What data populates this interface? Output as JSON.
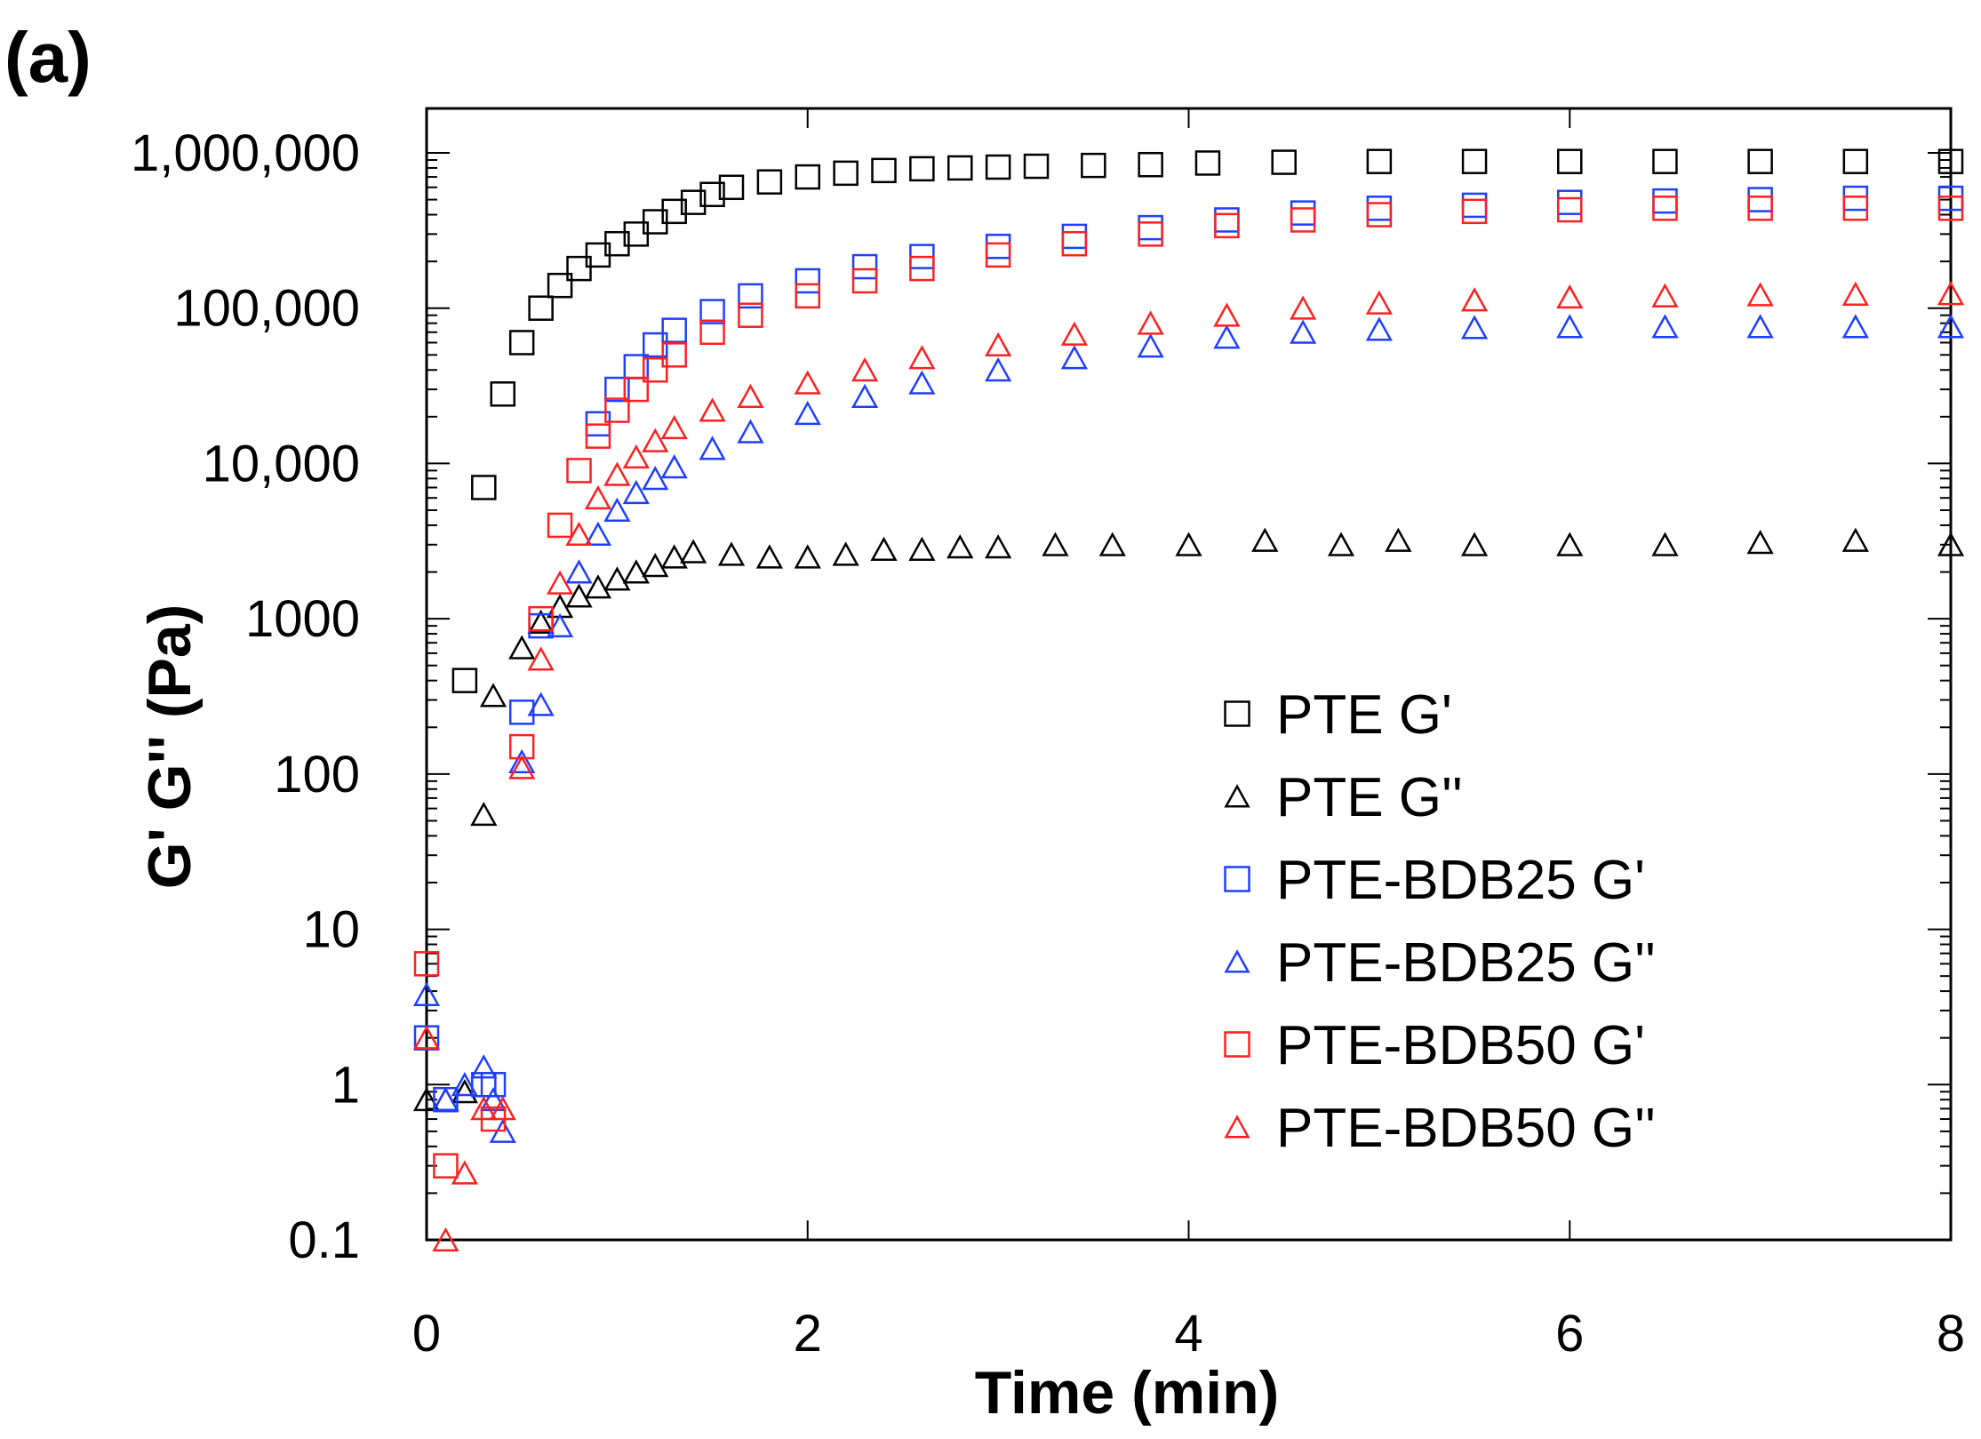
{
  "panel_label": "(a)",
  "chart_data": {
    "type": "scatter",
    "title": "",
    "xlabel": "Time (min)",
    "ylabel": "G' G'' (Pa)",
    "xlim": [
      0,
      8
    ],
    "ylim": [
      0.1,
      1000000
    ],
    "yscale": "log",
    "grid": false,
    "legend_position": "center-right",
    "x_ticks": [
      0,
      2,
      4,
      6,
      8
    ],
    "x_tick_labels": [
      "0",
      "2",
      "4",
      "6",
      "8"
    ],
    "y_ticks": [
      0.1,
      1,
      10,
      100,
      1000,
      10000,
      100000,
      1000000
    ],
    "y_tick_labels": [
      "0.1",
      "1",
      "10",
      "100",
      "1000",
      "10,000",
      "100,000",
      "1,000,000"
    ],
    "series": [
      {
        "name": "PTE G'",
        "marker": "square",
        "color": "#000000",
        "x": [
          0.2,
          0.3,
          0.4,
          0.5,
          0.6,
          0.7,
          0.8,
          0.9,
          1.0,
          1.1,
          1.2,
          1.3,
          1.4,
          1.5,
          1.6,
          1.8,
          2.0,
          2.2,
          2.4,
          2.6,
          2.8,
          3.0,
          3.2,
          3.5,
          3.8,
          4.1,
          4.5,
          5.0,
          5.5,
          6.0,
          6.5,
          7.0,
          7.5,
          8.0
        ],
        "y": [
          400,
          7000,
          28000,
          60000,
          100000,
          140000,
          180000,
          220000,
          260000,
          300000,
          360000,
          420000,
          480000,
          540000,
          600000,
          650000,
          700000,
          740000,
          770000,
          790000,
          800000,
          810000,
          820000,
          830000,
          840000,
          860000,
          870000,
          880000,
          880000,
          880000,
          880000,
          880000,
          880000,
          880000
        ]
      },
      {
        "name": "PTE G''",
        "marker": "triangle",
        "color": "#000000",
        "x": [
          0,
          0.1,
          0.2,
          0.3,
          0.35,
          0.5,
          0.6,
          0.7,
          0.8,
          0.9,
          1.0,
          1.1,
          1.2,
          1.3,
          1.4,
          1.6,
          1.8,
          2.0,
          2.2,
          2.4,
          2.6,
          2.8,
          3.0,
          3.3,
          3.6,
          4.0,
          4.4,
          4.8,
          5.1,
          5.5,
          6.0,
          6.5,
          7.0,
          7.5,
          8.0
        ],
        "y": [
          0.8,
          0.8,
          0.9,
          55,
          320,
          650,
          950,
          1200,
          1400,
          1600,
          1800,
          2000,
          2200,
          2500,
          2700,
          2600,
          2500,
          2500,
          2600,
          2800,
          2800,
          2900,
          2900,
          3000,
          3000,
          3000,
          3200,
          3000,
          3200,
          3000,
          3000,
          3000,
          3100,
          3200,
          3000
        ]
      },
      {
        "name": "PTE-BDB25 G'",
        "marker": "square",
        "color": "#1f3fff",
        "x": [
          0,
          0.1,
          0.3,
          0.35,
          0.5,
          0.6,
          0.9,
          1.0,
          1.1,
          1.2,
          1.3,
          1.5,
          1.7,
          2.0,
          2.3,
          2.6,
          3.0,
          3.4,
          3.8,
          4.2,
          4.6,
          5.0,
          5.5,
          6.0,
          6.5,
          7.0,
          7.5,
          8.0
        ],
        "y": [
          2,
          0.8,
          1.0,
          1.0,
          250,
          900,
          18000,
          30000,
          42000,
          58000,
          72000,
          95000,
          120000,
          150000,
          185000,
          215000,
          250000,
          290000,
          330000,
          370000,
          410000,
          440000,
          460000,
          480000,
          490000,
          500000,
          510000,
          510000
        ]
      },
      {
        "name": "PTE-BDB25 G''",
        "marker": "triangle",
        "color": "#1f3fff",
        "x": [
          0,
          0.1,
          0.2,
          0.3,
          0.35,
          0.4,
          0.5,
          0.6,
          0.7,
          0.8,
          0.9,
          1.0,
          1.1,
          1.2,
          1.3,
          1.5,
          1.7,
          2.0,
          2.3,
          2.6,
          3.0,
          3.4,
          3.8,
          4.2,
          4.6,
          5.0,
          5.5,
          6.0,
          6.5,
          7.0,
          7.5,
          8.0
        ],
        "y": [
          3.8,
          0.8,
          1.0,
          1.3,
          0.8,
          0.5,
          120,
          280,
          900,
          2000,
          3500,
          5000,
          6500,
          8000,
          9500,
          12500,
          16000,
          21000,
          27000,
          33000,
          40000,
          48000,
          57000,
          65000,
          70000,
          73000,
          75000,
          76000,
          76000,
          76000,
          76000,
          76000
        ]
      },
      {
        "name": "PTE-BDB50 G'",
        "marker": "square",
        "color": "#ff2020",
        "x": [
          0,
          0.1,
          0.35,
          0.5,
          0.6,
          0.7,
          0.8,
          0.9,
          1.0,
          1.1,
          1.2,
          1.3,
          1.5,
          1.7,
          2.0,
          2.3,
          2.6,
          3.0,
          3.4,
          3.8,
          4.2,
          4.6,
          5.0,
          5.5,
          6.0,
          6.5,
          7.0,
          7.5,
          8.0
        ],
        "y": [
          6,
          0.3,
          0.6,
          150,
          1000,
          4000,
          9000,
          15000,
          22000,
          30000,
          40000,
          50000,
          70000,
          90000,
          120000,
          150000,
          180000,
          220000,
          260000,
          300000,
          340000,
          370000,
          400000,
          420000,
          430000,
          440000,
          440000,
          440000,
          440000
        ]
      },
      {
        "name": "PTE-BDB50 G''",
        "marker": "triangle",
        "color": "#ff2020",
        "x": [
          0,
          0.1,
          0.2,
          0.3,
          0.4,
          0.5,
          0.6,
          0.7,
          0.8,
          0.9,
          1.0,
          1.1,
          1.2,
          1.3,
          1.5,
          1.7,
          2.0,
          2.3,
          2.6,
          3.0,
          3.4,
          3.8,
          4.2,
          4.6,
          5.0,
          5.5,
          6.0,
          6.5,
          7.0,
          7.5,
          8.0
        ],
        "y": [
          2,
          0.1,
          0.27,
          0.7,
          0.7,
          110,
          550,
          1700,
          3500,
          6000,
          8500,
          11000,
          14000,
          17000,
          22000,
          27000,
          33000,
          40000,
          48000,
          58000,
          68000,
          80000,
          90000,
          100000,
          108000,
          113000,
          118000,
          120000,
          122000,
          123000,
          124000
        ]
      }
    ]
  }
}
